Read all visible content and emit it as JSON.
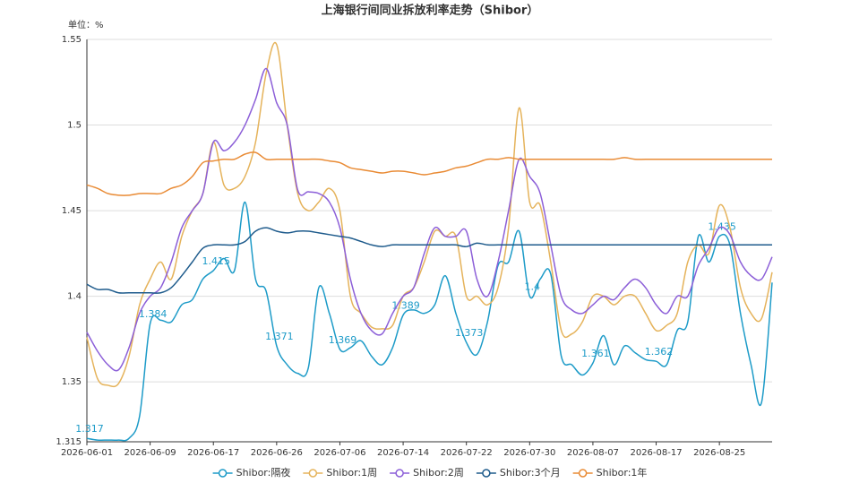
{
  "chart_data": {
    "type": "line",
    "title": "上海银行间同业拆放利率走势（Shibor）",
    "unit_label": "单位：%",
    "categories": [
      "2026-06-01",
      null,
      null,
      null,
      null,
      null,
      "2026-06-09",
      null,
      null,
      null,
      null,
      null,
      "2026-06-17",
      null,
      null,
      null,
      null,
      null,
      "2026-06-26",
      null,
      null,
      null,
      null,
      null,
      "2026-07-06",
      null,
      null,
      null,
      null,
      null,
      "2026-07-14",
      null,
      null,
      null,
      null,
      null,
      "2026-07-22",
      null,
      null,
      null,
      null,
      null,
      "2026-07-30",
      null,
      null,
      null,
      null,
      null,
      "2026-08-07",
      null,
      null,
      null,
      null,
      null,
      "2026-08-17",
      null,
      null,
      null,
      null,
      null,
      "2026-08-25",
      null,
      null,
      null,
      null,
      null
    ],
    "ylim": [
      1.315,
      1.55
    ],
    "yticks": [
      1.315,
      1.35,
      1.4,
      1.45,
      1.5,
      1.55
    ],
    "grid": true,
    "legend": "bottom",
    "series": [
      {
        "name": "Shibor:隔夜",
        "color": "#1d9bc8",
        "label_every": 6,
        "values": [
          1.317,
          1.316,
          1.316,
          1.316,
          1.317,
          1.33,
          1.384,
          1.386,
          1.385,
          1.395,
          1.398,
          1.41,
          1.415,
          1.422,
          1.415,
          1.455,
          1.41,
          1.403,
          1.371,
          1.36,
          1.355,
          1.358,
          1.405,
          1.39,
          1.369,
          1.37,
          1.374,
          1.365,
          1.36,
          1.37,
          1.389,
          1.392,
          1.39,
          1.395,
          1.412,
          1.39,
          1.373,
          1.366,
          1.385,
          1.418,
          1.42,
          1.438,
          1.4,
          1.41,
          1.413,
          1.365,
          1.36,
          1.354,
          1.361,
          1.377,
          1.36,
          1.371,
          1.367,
          1.363,
          1.362,
          1.36,
          1.38,
          1.385,
          1.435,
          1.42,
          1.435,
          1.43,
          1.39,
          1.36,
          1.338,
          1.408
        ]
      },
      {
        "name": "Shibor:1周",
        "color": "#e5b35b",
        "values": [
          1.376,
          1.352,
          1.348,
          1.349,
          1.365,
          1.395,
          1.41,
          1.42,
          1.41,
          1.435,
          1.45,
          1.46,
          1.49,
          1.465,
          1.463,
          1.47,
          1.49,
          1.53,
          1.547,
          1.5,
          1.46,
          1.45,
          1.455,
          1.463,
          1.45,
          1.4,
          1.39,
          1.382,
          1.381,
          1.383,
          1.4,
          1.405,
          1.42,
          1.438,
          1.435,
          1.435,
          1.4,
          1.4,
          1.395,
          1.405,
          1.44,
          1.51,
          1.455,
          1.453,
          1.42,
          1.38,
          1.378,
          1.385,
          1.4,
          1.4,
          1.395,
          1.4,
          1.4,
          1.39,
          1.38,
          1.383,
          1.39,
          1.42,
          1.43,
          1.425,
          1.453,
          1.44,
          1.405,
          1.39,
          1.387,
          1.414
        ]
      },
      {
        "name": "Shibor:2周",
        "color": "#8c5fd8",
        "values": [
          1.379,
          1.368,
          1.36,
          1.357,
          1.37,
          1.39,
          1.4,
          1.405,
          1.42,
          1.44,
          1.45,
          1.46,
          1.49,
          1.485,
          1.49,
          1.5,
          1.515,
          1.533,
          1.513,
          1.5,
          1.462,
          1.461,
          1.46,
          1.455,
          1.44,
          1.41,
          1.39,
          1.38,
          1.378,
          1.39,
          1.4,
          1.405,
          1.425,
          1.44,
          1.435,
          1.435,
          1.438,
          1.41,
          1.4,
          1.42,
          1.45,
          1.48,
          1.47,
          1.46,
          1.43,
          1.4,
          1.392,
          1.39,
          1.395,
          1.4,
          1.398,
          1.405,
          1.41,
          1.405,
          1.395,
          1.39,
          1.4,
          1.4,
          1.418,
          1.428,
          1.44,
          1.436,
          1.42,
          1.412,
          1.41,
          1.423
        ]
      },
      {
        "name": "Shibor:3个月",
        "color": "#1e5b8c",
        "values": [
          1.407,
          1.404,
          1.404,
          1.402,
          1.402,
          1.402,
          1.402,
          1.402,
          1.405,
          1.412,
          1.42,
          1.428,
          1.43,
          1.43,
          1.43,
          1.432,
          1.438,
          1.44,
          1.438,
          1.437,
          1.438,
          1.438,
          1.437,
          1.436,
          1.435,
          1.434,
          1.432,
          1.43,
          1.429,
          1.43,
          1.43,
          1.43,
          1.43,
          1.43,
          1.43,
          1.43,
          1.429,
          1.431,
          1.43,
          1.43,
          1.43,
          1.43,
          1.43,
          1.43,
          1.43,
          1.43,
          1.43,
          1.43,
          1.43,
          1.43,
          1.43,
          1.43,
          1.43,
          1.43,
          1.43,
          1.43,
          1.43,
          1.43,
          1.43,
          1.43,
          1.43,
          1.43,
          1.43,
          1.43,
          1.43,
          1.43
        ]
      },
      {
        "name": "Shibor:1年",
        "color": "#e98b35",
        "values": [
          1.465,
          1.463,
          1.46,
          1.459,
          1.459,
          1.46,
          1.46,
          1.46,
          1.463,
          1.465,
          1.47,
          1.478,
          1.479,
          1.48,
          1.48,
          1.483,
          1.484,
          1.48,
          1.48,
          1.48,
          1.48,
          1.48,
          1.48,
          1.479,
          1.478,
          1.475,
          1.474,
          1.473,
          1.472,
          1.473,
          1.473,
          1.472,
          1.471,
          1.472,
          1.473,
          1.475,
          1.476,
          1.478,
          1.48,
          1.48,
          1.481,
          1.48,
          1.48,
          1.48,
          1.48,
          1.48,
          1.48,
          1.48,
          1.48,
          1.48,
          1.48,
          1.481,
          1.48,
          1.48,
          1.48,
          1.48,
          1.48,
          1.48,
          1.48,
          1.48,
          1.48,
          1.48,
          1.48,
          1.48,
          1.48,
          1.48
        ]
      }
    ]
  }
}
